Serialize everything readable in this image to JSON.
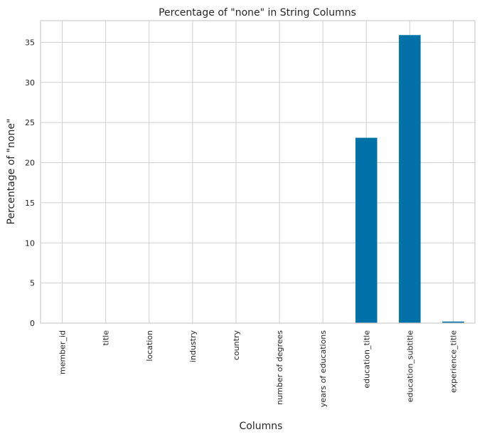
{
  "chart_data": {
    "type": "bar",
    "title": "Percentage of \"none\" in String Columns",
    "xlabel": "Columns",
    "ylabel": "Percentage of \"none\"",
    "categories": [
      "member_id",
      "title",
      "location",
      "industry",
      "country",
      "number of degrees",
      "years of educations",
      "education_title",
      "education_subtitle",
      "experience_title"
    ],
    "values": [
      0,
      0,
      0,
      0,
      0,
      0,
      0,
      23.1,
      35.9,
      0.2
    ],
    "ylim": [
      0,
      37.7
    ],
    "yticks": [
      0,
      5,
      10,
      15,
      20,
      25,
      30,
      35
    ],
    "grid": true,
    "bar_color": "#0072a8",
    "grid_color": "#cfcfcf",
    "frame_color": "#cccccc"
  }
}
